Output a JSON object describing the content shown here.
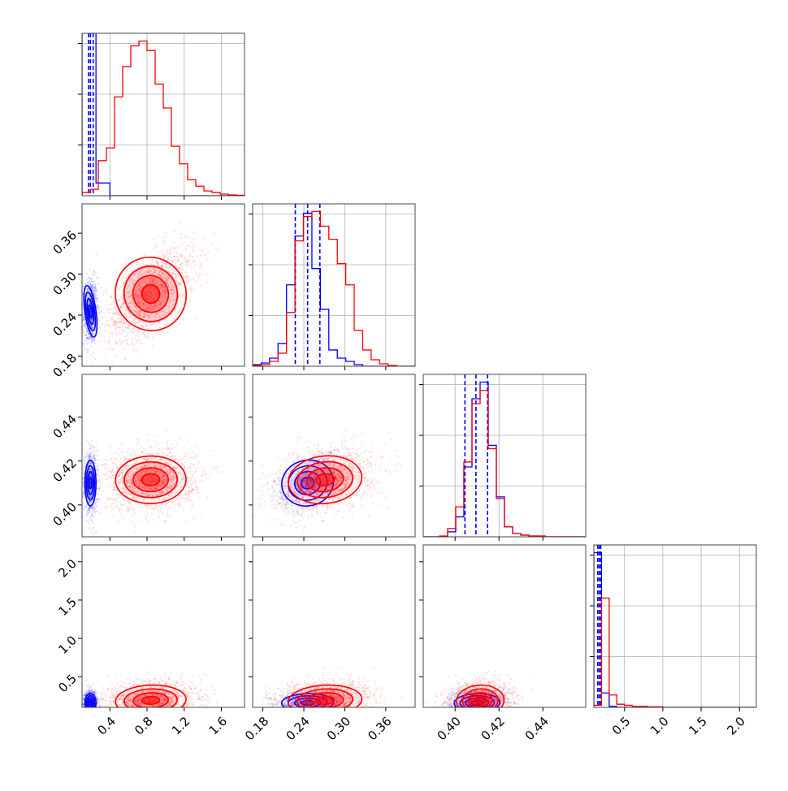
{
  "chart_data": {
    "type": "corner",
    "grid": true,
    "params": [
      {
        "range": [
          0.1,
          1.85
        ],
        "ticks": [
          0.4,
          0.8,
          1.2,
          1.6
        ],
        "tick_labels": [
          "0.4",
          "0.8",
          "1.2",
          "1.6"
        ]
      },
      {
        "range": [
          0.165,
          0.403
        ],
        "ticks": [
          0.18,
          0.24,
          0.3,
          0.36
        ],
        "tick_labels": [
          "0.18",
          "0.24",
          "0.30",
          "0.36"
        ]
      },
      {
        "range": [
          0.3855,
          0.4595
        ],
        "ticks": [
          0.4,
          0.42,
          0.44
        ],
        "tick_labels": [
          "0.40",
          "0.42",
          "0.44"
        ]
      },
      {
        "range": [
          0.1,
          2.22
        ],
        "ticks": [
          0.5,
          1.0,
          1.5,
          2.0
        ],
        "tick_labels": [
          "0.5",
          "1.0",
          "1.5",
          "2.0"
        ]
      }
    ],
    "series": [
      {
        "color": "#0000ff",
        "quantiles": [
          [
            0.17,
            0.19,
            0.22
          ],
          [
            0.2275,
            0.2455,
            0.2635
          ],
          [
            0.4045,
            0.4095,
            0.4148
          ],
          [
            0.15,
            0.17,
            0.19
          ]
        ],
        "hist": [
          {
            "x0": 0.1,
            "bin": 0.15,
            "values": [
              1000,
              0.08,
              0,
              0,
              0,
              0,
              0,
              0,
              0,
              0,
              0
            ]
          },
          {
            "x0": 0.165,
            "bin": 0.0124,
            "values": [
              0.01,
              0.02,
              0.05,
              0.14,
              0.5,
              0.8,
              0.94,
              0.6,
              0.35,
              0.1,
              0.05,
              0.03,
              0.01,
              0,
              0,
              0,
              0,
              0,
              0,
              0
            ]
          },
          {
            "x0": 0.3855,
            "bin": 0.0037,
            "values": [
              0,
              0,
              0,
              0.03,
              0.12,
              0.42,
              0.83,
              0.93,
              0.55,
              0.24,
              0.06,
              0.02,
              0.01,
              0.005,
              0.005,
              0,
              0,
              0,
              0,
              0
            ]
          },
          {
            "x0": 0.1,
            "bin": 0.1,
            "values": [
              1.5,
              0.14,
              0.01,
              0,
              0,
              0,
              0,
              0,
              0,
              0,
              0,
              0,
              0,
              0,
              0,
              0,
              0,
              0,
              0,
              0,
              0
            ]
          }
        ],
        "centers": [
          0.19,
          0.2455,
          0.41,
          0.16
        ],
        "sd": [
          0.03,
          0.019,
          0.0052,
          0.06
        ],
        "rho": [
          [
            1,
            0.05,
            0.0,
            0.0
          ],
          [
            0.05,
            1,
            0.45,
            0.1
          ],
          [
            0.0,
            0.45,
            1,
            0.1
          ],
          [
            0.0,
            0.1,
            0.1,
            1
          ]
        ]
      },
      {
        "color": "#ff0000",
        "quantiles": [
          [],
          [],
          [],
          []
        ],
        "hist": [
          {
            "x0": 0.1,
            "bin": 0.0875,
            "values": [
              0.02,
              0.04,
              0.22,
              0.3,
              0.62,
              0.81,
              0.94,
              0.97,
              0.91,
              0.7,
              0.55,
              0.31,
              0.2,
              0.1,
              0.06,
              0.03,
              0.02,
              0.01,
              0.005,
              0.003
            ]
          },
          {
            "x0": 0.165,
            "bin": 0.0124,
            "values": [
              0.005,
              0.01,
              0.03,
              0.08,
              0.33,
              0.77,
              0.92,
              0.95,
              0.86,
              0.78,
              0.63,
              0.5,
              0.22,
              0.1,
              0.04,
              0.015,
              0.005,
              0,
              0,
              0
            ]
          },
          {
            "x0": 0.3855,
            "bin": 0.0037,
            "values": [
              0,
              0,
              0.005,
              0.05,
              0.18,
              0.45,
              0.8,
              0.88,
              0.53,
              0.23,
              0.06,
              0.02,
              0.01,
              0.005,
              0.005,
              0,
              0,
              0,
              0,
              0
            ]
          },
          {
            "x0": 0.1,
            "bin": 0.1,
            "values": [
              0.02,
              1.06,
              0.12,
              0.03,
              0.02,
              0.01,
              0.01,
              0.005,
              0.005,
              0,
              0,
              0,
              0,
              0,
              0,
              0,
              0,
              0,
              0,
              0,
              0
            ]
          }
        ],
        "centers": [
          0.84,
          0.271,
          0.4115,
          0.19
        ],
        "sd": [
          0.19,
          0.027,
          0.0054,
          0.1
        ],
        "rho": [
          [
            1,
            0.6,
            0.05,
            0.15
          ],
          [
            0.6,
            1,
            0.3,
            0.2
          ],
          [
            0.05,
            0.3,
            1,
            0.1
          ],
          [
            0.15,
            0.2,
            0.1,
            1
          ]
        ]
      }
    ]
  }
}
